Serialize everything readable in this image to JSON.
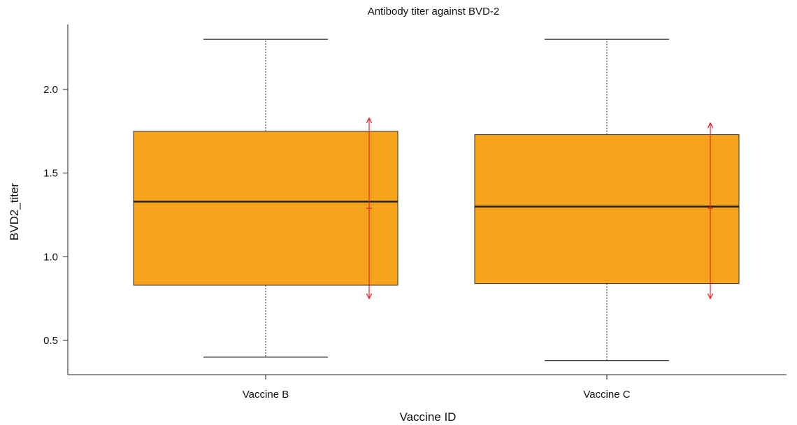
{
  "chart_data": {
    "type": "boxplot",
    "title": "Antibody titer against BVD-2",
    "xlabel": "Vaccine ID",
    "ylabel": "BVD2_titer",
    "ylim": [
      0.3,
      2.5
    ],
    "yticks": [
      0.5,
      1.0,
      1.5,
      2.0
    ],
    "ytick_labels": [
      "0.5",
      "1.0",
      "1.5",
      "2.0"
    ],
    "grid": false,
    "colors": {
      "box_fill": "#F7A41D",
      "box_stroke": "#333333",
      "median": "#222222",
      "whisker": "#222222",
      "error_bar": "#E8202A"
    },
    "categories": [
      "Vaccine B",
      "Vaccine C"
    ],
    "boxes": [
      {
        "category": "Vaccine B",
        "min": 0.4,
        "q1": 0.83,
        "median": 1.33,
        "q3": 1.75,
        "max": 2.3,
        "mean": 1.29,
        "sd_low": 0.75,
        "sd_high": 1.83
      },
      {
        "category": "Vaccine C",
        "min": 0.38,
        "q1": 0.84,
        "median": 1.3,
        "q3": 1.73,
        "max": 2.3,
        "mean": 1.29,
        "sd_low": 0.75,
        "sd_high": 1.8
      }
    ]
  }
}
